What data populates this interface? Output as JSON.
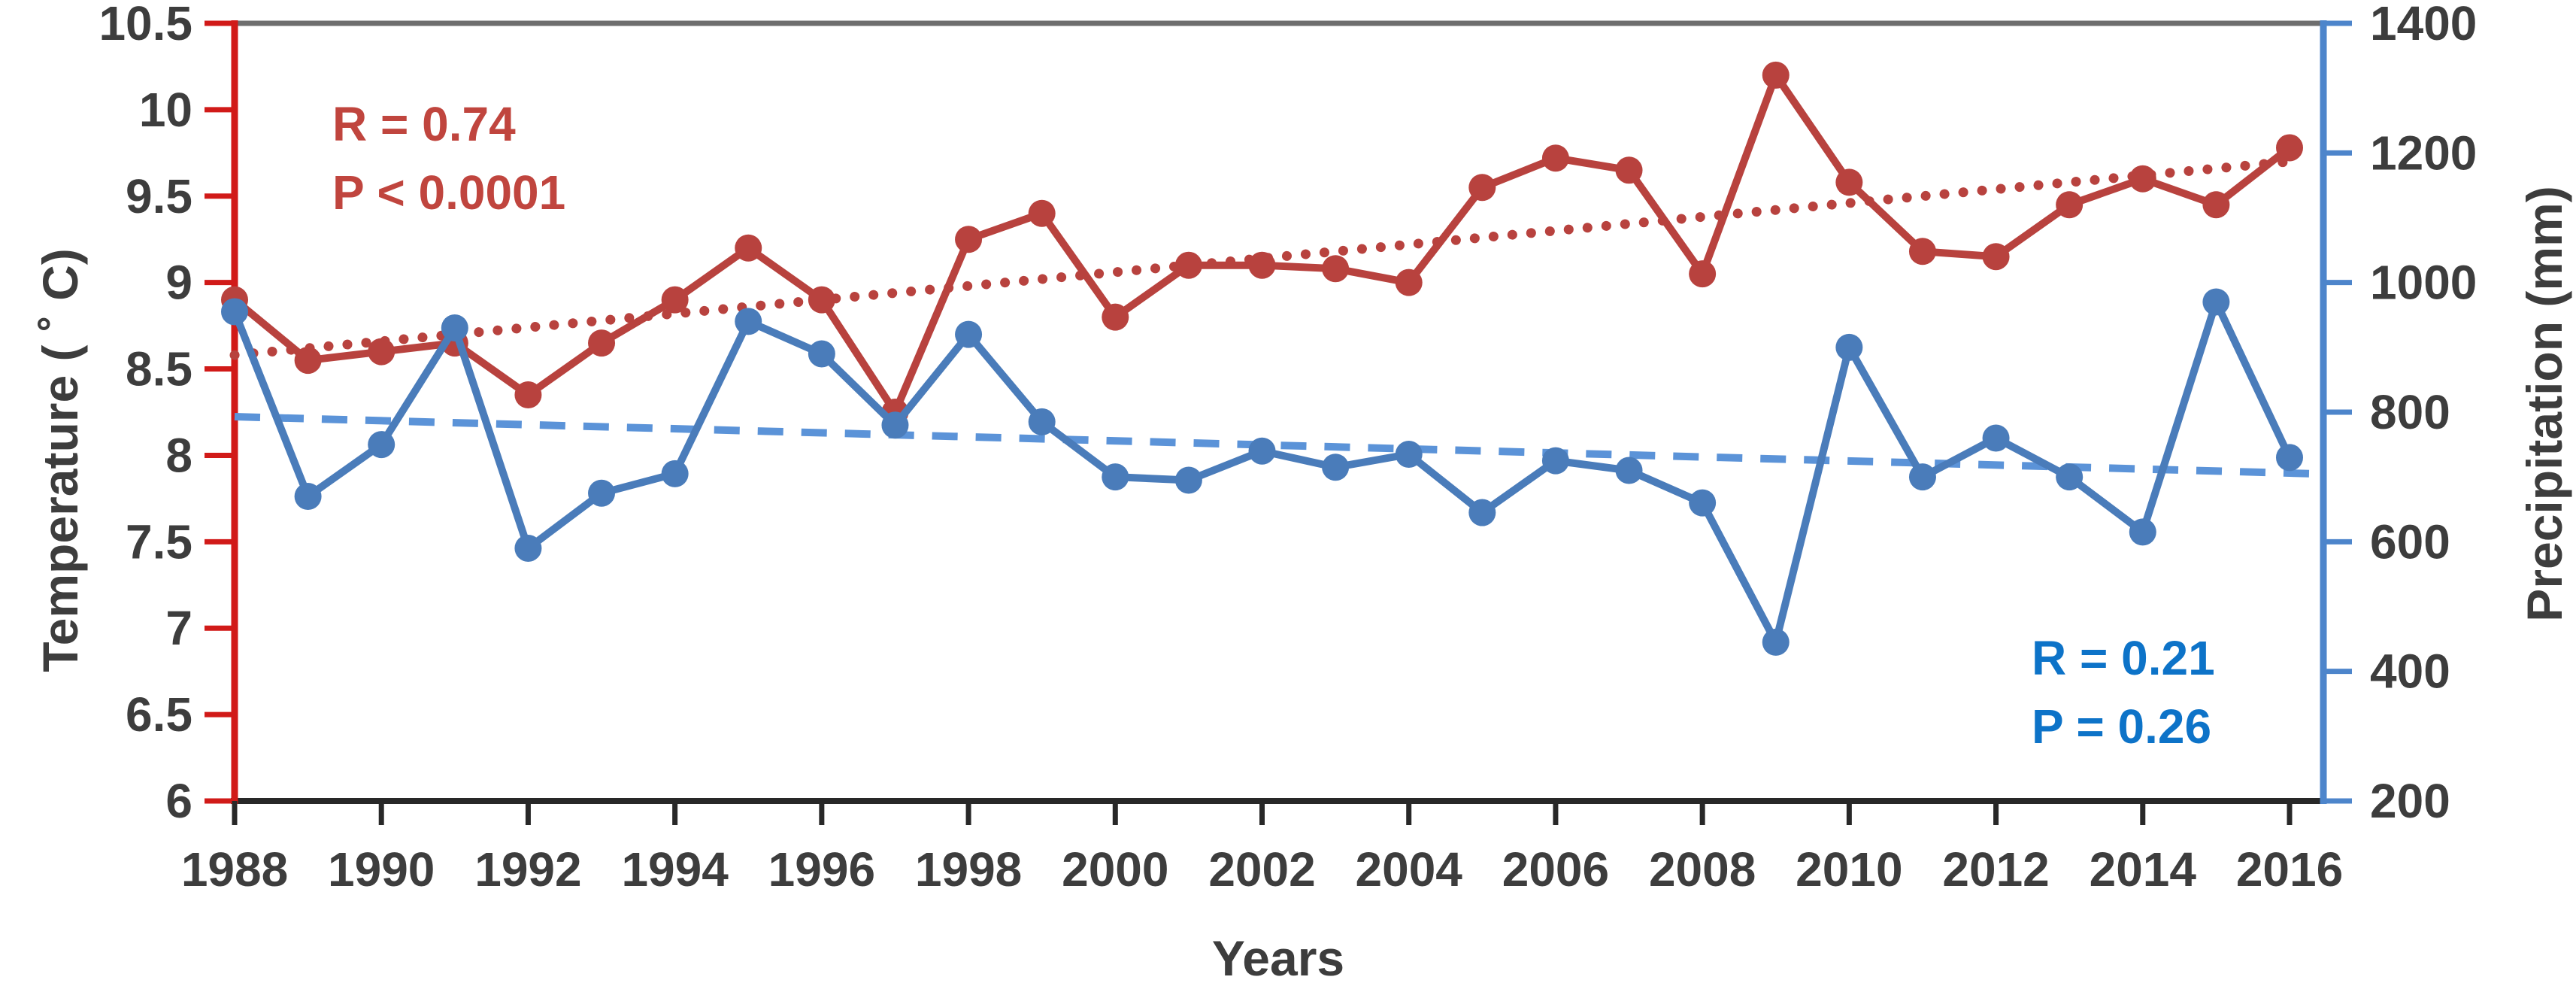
{
  "labels": {
    "x_axis_title": "Years",
    "left_axis_title": "Temperature ( ˚ C)",
    "right_axis_title": "Precipitation (mm)",
    "temp_annotation_r": "R = 0.74",
    "temp_annotation_p": "P < 0.0001",
    "precip_annotation_r": "R = 0.21",
    "precip_annotation_p": "P = 0.26"
  },
  "colors": {
    "temp_series": "#b8423e",
    "temp_axis": "#d11a18",
    "temp_annotation": "#c0453e",
    "precip_series": "#4a7cba",
    "precip_trend": "#5b93d8",
    "precip_axis": "#4d85cb",
    "precip_annotation": "#0d73c8",
    "tick_label": "#3d3d3d",
    "top_border": "#6e6e6e",
    "bottom_axis": "#282828"
  },
  "chart_data": {
    "type": "line",
    "title": "",
    "xlabel": "Years",
    "grid": false,
    "legend_position": "none",
    "x": [
      1988,
      1989,
      1990,
      1991,
      1992,
      1993,
      1994,
      1995,
      1996,
      1997,
      1998,
      1999,
      2000,
      2001,
      2002,
      2003,
      2004,
      2005,
      2006,
      2007,
      2008,
      2009,
      2010,
      2011,
      2012,
      2013,
      2014,
      2015,
      2016
    ],
    "x_ticks": [
      1988,
      1990,
      1992,
      1994,
      1996,
      1998,
      2000,
      2002,
      2004,
      2006,
      2008,
      2010,
      2012,
      2014,
      2016
    ],
    "left_axis": {
      "title": "Temperature ( ˚ C)",
      "min": 6,
      "max": 10.5,
      "ticks": [
        6,
        6.5,
        7,
        7.5,
        8,
        8.5,
        9,
        9.5,
        10,
        10.5
      ]
    },
    "right_axis": {
      "title": "Precipitation (mm)",
      "min": 200,
      "max": 1400,
      "ticks": [
        200,
        400,
        600,
        800,
        1000,
        1200,
        1400
      ]
    },
    "series": [
      {
        "name": "Temperature",
        "axis": "left",
        "marker": "circle",
        "line_style": "solid",
        "trend_style": "dotted",
        "r_label": "R = 0.74",
        "p_label": "P < 0.0001",
        "values": [
          8.9,
          8.55,
          8.6,
          8.65,
          8.35,
          8.65,
          8.9,
          9.2,
          8.9,
          8.25,
          9.25,
          9.4,
          8.8,
          9.1,
          9.1,
          9.08,
          9.0,
          9.55,
          9.72,
          9.65,
          9.05,
          10.2,
          9.58,
          9.18,
          9.15,
          9.45,
          9.6,
          9.45,
          9.78
        ],
        "trend": {
          "start_value": 8.58,
          "end_value": 9.7
        }
      },
      {
        "name": "Precipitation",
        "axis": "right",
        "marker": "circle",
        "line_style": "solid",
        "trend_style": "dashed",
        "r_label": "R = 0.21",
        "p_label": "P = 0.26",
        "values": [
          955,
          670,
          750,
          930,
          590,
          675,
          705,
          940,
          890,
          780,
          920,
          785,
          700,
          695,
          740,
          715,
          735,
          645,
          725,
          710,
          660,
          445,
          900,
          700,
          760,
          700,
          615,
          970,
          730
        ],
        "trend": {
          "start_value": 793,
          "end_value": 706
        }
      }
    ]
  }
}
